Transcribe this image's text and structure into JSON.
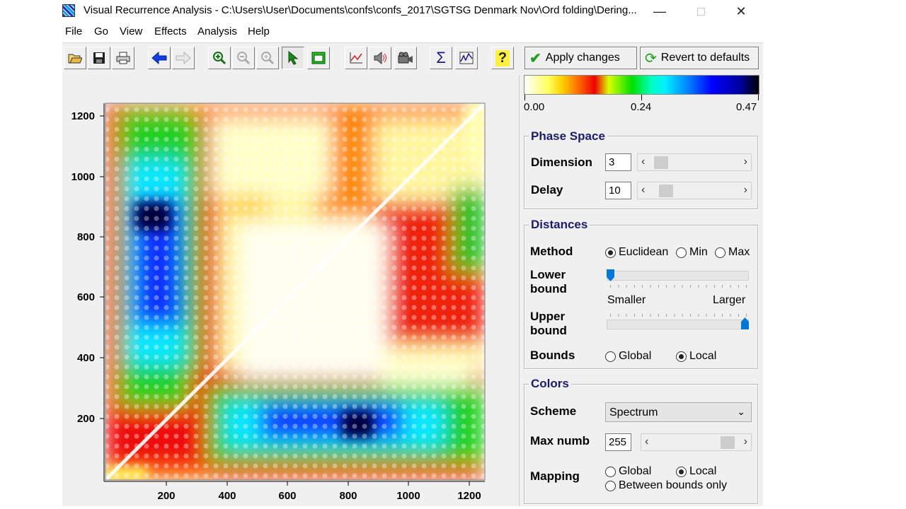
{
  "window": {
    "title": "Visual Recurrence Analysis  -  C:\\Users\\User\\Documents\\confs\\confs_2017\\SGTSG Denmark Nov\\Ord folding\\Dering...",
    "minimize": "—",
    "close": "✕"
  },
  "menu": [
    "File",
    "Go",
    "View",
    "Effects",
    "Analysis",
    "Help"
  ],
  "toolbar": {
    "apply_label": "Apply changes",
    "revert_label": "Revert to defaults",
    "sigma_glyph": "Σ",
    "help_glyph": "?"
  },
  "plot": {
    "x_ticks": [
      "200",
      "400",
      "600",
      "800",
      "1000",
      "1200"
    ],
    "y_ticks": [
      "1200",
      "1000",
      "800",
      "600",
      "400",
      "200"
    ]
  },
  "colorbar": {
    "min_label": "0.00",
    "mid_label": "0.24",
    "max_label": "0.47",
    "colors": [
      "#ffffff",
      "#ffff60",
      "#ff7a00",
      "#f00000",
      "#00e000",
      "#00f0ff",
      "#0000ff",
      "#000000"
    ]
  },
  "phase_space": {
    "title": "Phase Space",
    "dimension_label": "Dimension",
    "dimension_value": "3",
    "delay_label": "Delay",
    "delay_value": "10"
  },
  "distances": {
    "title": "Distances",
    "method_label": "Method",
    "method_options": [
      "Euclidean",
      "Min",
      "Max"
    ],
    "method_selected": "Euclidean",
    "lower_bound_label_1": "Lower",
    "lower_bound_label_2": "bound",
    "smaller_label": "Smaller",
    "larger_label": "Larger",
    "upper_bound_label_1": "Upper",
    "upper_bound_label_2": "bound",
    "bounds_label": "Bounds",
    "bounds_options": [
      "Global",
      "Local"
    ],
    "bounds_selected": "Local"
  },
  "colors": {
    "title": "Colors",
    "scheme_label": "Scheme",
    "scheme_value": "Spectrum",
    "max_numb_label": "Max numb",
    "max_numb_value": "255",
    "mapping_label": "Mapping",
    "mapping_options": [
      "Global",
      "Local",
      "Between bounds only"
    ],
    "mapping_selected": "Local"
  }
}
